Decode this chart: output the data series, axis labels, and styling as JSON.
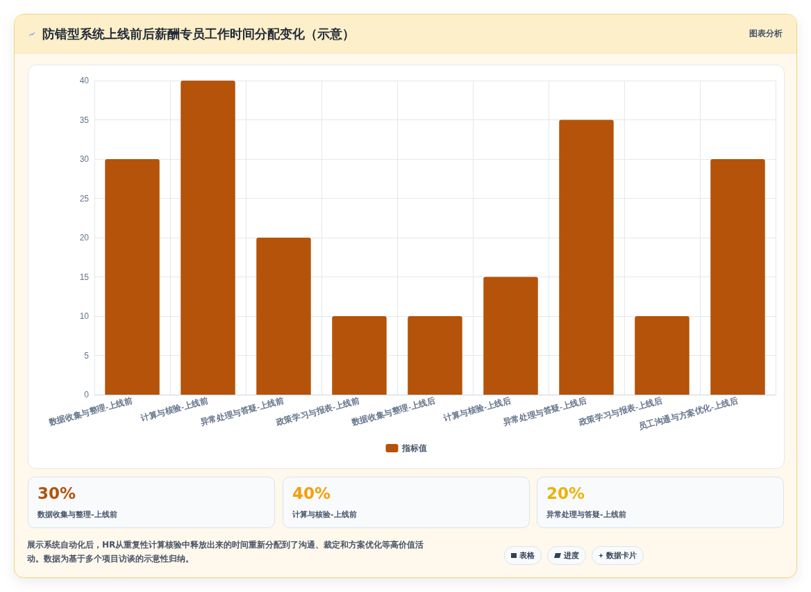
{
  "chart_data": {
    "type": "bar",
    "title": "防错型系统上线前后薪酬专员工作时间分配变化（示意）",
    "categories": [
      "数据收集与整理-上线前",
      "计算与核验-上线前",
      "异常处理与答疑-上线前",
      "政策学习与报表-上线前",
      "数据收集与整理-上线后",
      "计算与核验-上线后",
      "异常处理与答疑-上线后",
      "政策学习与报表-上线后",
      "员工沟通与方案优化-上线后"
    ],
    "series": [
      {
        "name": "指标值",
        "color": "#b45309",
        "values": [
          30,
          40,
          20,
          10,
          10,
          15,
          35,
          10,
          30
        ]
      }
    ],
    "ylim": [
      0,
      40
    ],
    "yticks": [
      0,
      5,
      10,
      15,
      20,
      25,
      30,
      35,
      40
    ],
    "grid": true,
    "legend": "bottom",
    "annotations": [
      "图表分析",
      "30%",
      "数据收集与整理-上线前",
      "40%",
      "计算与核验-上线前",
      "20%",
      "异常处理与答疑-上线前",
      "展示系统自动化后，HR从重复性计算核验中释放出来的时间重新分配到了沟通、裁定和方案优化等高价值活动。数据为基于多个项目访谈的示意性归纳。",
      "表格",
      "进度",
      "数据卡片"
    ]
  }
}
